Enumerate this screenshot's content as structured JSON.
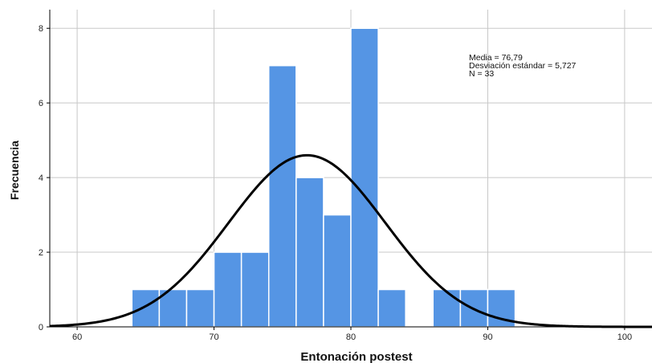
{
  "chart_data": {
    "type": "histogram",
    "xlabel": "Entonación postest",
    "ylabel": "Frecuencia",
    "xlim": [
      58,
      102
    ],
    "ylim": [
      0,
      8.5
    ],
    "x_ticks": [
      60,
      70,
      80,
      90,
      100
    ],
    "y_ticks": [
      0,
      2,
      4,
      6,
      8
    ],
    "grid": true,
    "bin_width": 2,
    "bins": [
      {
        "start": 64,
        "end": 66,
        "count": 1
      },
      {
        "start": 66,
        "end": 68,
        "count": 1
      },
      {
        "start": 68,
        "end": 70,
        "count": 1
      },
      {
        "start": 70,
        "end": 72,
        "count": 2
      },
      {
        "start": 72,
        "end": 74,
        "count": 2
      },
      {
        "start": 74,
        "end": 76,
        "count": 7
      },
      {
        "start": 76,
        "end": 78,
        "count": 4
      },
      {
        "start": 78,
        "end": 80,
        "count": 3
      },
      {
        "start": 80,
        "end": 82,
        "count": 8
      },
      {
        "start": 82,
        "end": 84,
        "count": 1
      },
      {
        "start": 86,
        "end": 88,
        "count": 1
      },
      {
        "start": 88,
        "end": 90,
        "count": 1
      },
      {
        "start": 90,
        "end": 92,
        "count": 1
      }
    ],
    "normal_curve": {
      "mean": 76.79,
      "sd": 5.727,
      "n": 33
    },
    "stats_lines": [
      "Media = 76,79",
      "Desviación estándar = 5,727",
      "N = 33"
    ],
    "colors": {
      "bar": "#5595e4",
      "bar_edge": "#ffffff",
      "curve": "#000000",
      "grid": "#c8c8c8",
      "axis": "#000000"
    }
  }
}
